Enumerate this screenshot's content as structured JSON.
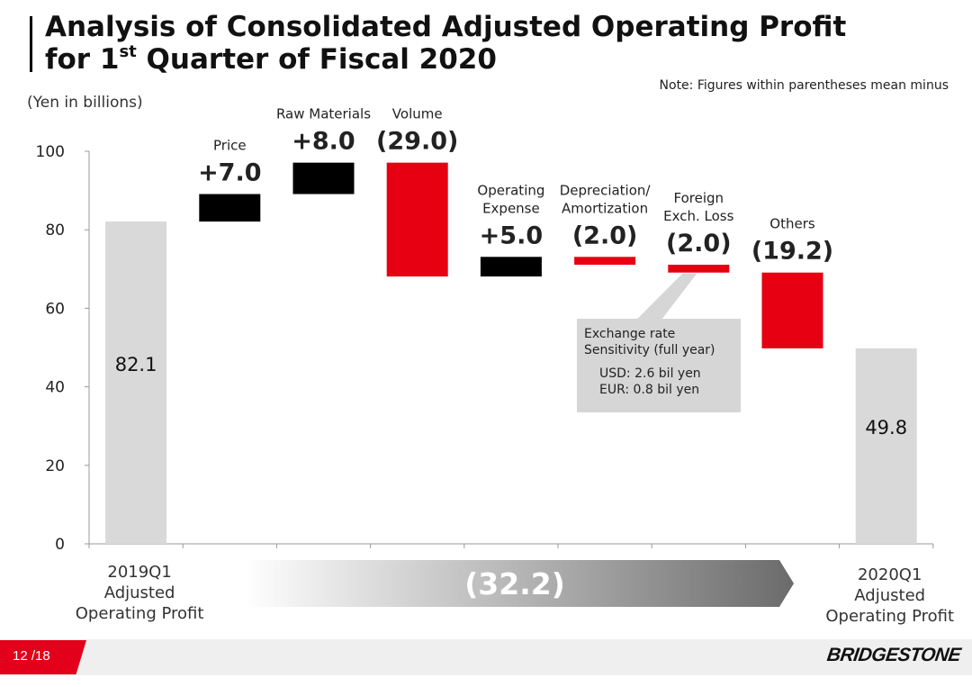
{
  "title": {
    "line1": "Analysis of Consolidated Adjusted Operating Profit",
    "line2_pre": "for 1",
    "line2_sup": "st",
    "line2_post": " Quarter of Fiscal 2020"
  },
  "note": "Note: Figures within parentheses mean minus",
  "unit_label": "(Yen in billions)",
  "colors": {
    "total": "#d9d9d9",
    "increase": "#000000",
    "decrease": "#e60012",
    "accent": "#e2001a"
  },
  "chart_data": {
    "type": "bar",
    "subtype": "waterfall",
    "y_ticks": [
      0,
      20,
      40,
      60,
      80,
      100
    ],
    "ylim": [
      0,
      100
    ],
    "bars": [
      {
        "id": "start",
        "kind": "total",
        "label_lines": [
          "2019Q1",
          "Adjusted",
          "Operating Profit"
        ],
        "from": 0,
        "to": 82.1,
        "value_text": "82.1"
      },
      {
        "id": "price",
        "kind": "increase",
        "label_lines": [
          "Price"
        ],
        "from": 82.1,
        "to": 89.1,
        "value_text": "+7.0"
      },
      {
        "id": "raw",
        "kind": "increase",
        "label_lines": [
          "Raw Materials"
        ],
        "from": 89.1,
        "to": 97.1,
        "value_text": "+8.0"
      },
      {
        "id": "volume",
        "kind": "decrease",
        "label_lines": [
          "Volume"
        ],
        "from": 97.1,
        "to": 68.1,
        "value_text": "(29.0)"
      },
      {
        "id": "opex",
        "kind": "increase",
        "label_lines": [
          "Operating",
          "Expense"
        ],
        "from": 68.1,
        "to": 73.1,
        "value_text": "+5.0"
      },
      {
        "id": "depr",
        "kind": "decrease",
        "label_lines": [
          "Depreciation/",
          "Amortization"
        ],
        "from": 73.1,
        "to": 71.1,
        "value_text": "(2.0)"
      },
      {
        "id": "fx",
        "kind": "decrease",
        "label_lines": [
          "Foreign",
          "Exch. Loss"
        ],
        "from": 71.1,
        "to": 69.1,
        "value_text": "(2.0)"
      },
      {
        "id": "others",
        "kind": "decrease",
        "label_lines": [
          "Others"
        ],
        "from": 69.1,
        "to": 49.8,
        "value_text": "(19.2)"
      },
      {
        "id": "end",
        "kind": "total",
        "label_lines": [
          "2020Q1",
          "Adjusted",
          "Operating Profit"
        ],
        "from": 0,
        "to": 49.8,
        "value_text": "49.8"
      }
    ],
    "total_change_text": "(32.2)"
  },
  "callout": {
    "line1": "Exchange rate",
    "line2": "Sensitivity (full year)",
    "usd": "USD: 2.6 bil yen",
    "eur": "EUR: 0.8 bil yen"
  },
  "footer": {
    "page": "12 /18",
    "logo": "BRIDGESTONE"
  }
}
